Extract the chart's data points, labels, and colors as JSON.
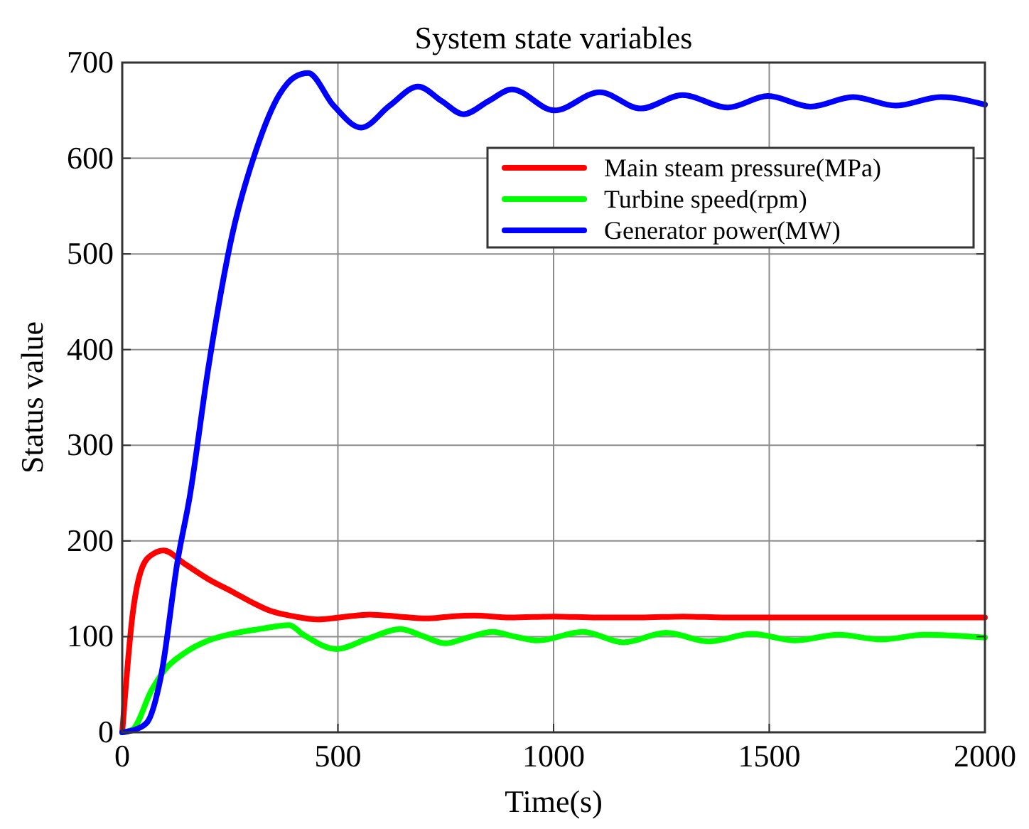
{
  "chart_data": {
    "type": "line",
    "title": "System state variables",
    "xlabel": "Time(s)",
    "ylabel": "Status value",
    "xlim": [
      0,
      2000
    ],
    "ylim": [
      0,
      700
    ],
    "xticks": [
      0,
      500,
      1000,
      1500,
      2000
    ],
    "yticks": [
      0,
      100,
      200,
      300,
      400,
      500,
      600,
      700
    ],
    "grid": true,
    "legend": "top right",
    "line_style": "solid",
    "marker": "none",
    "series": [
      {
        "name": "Main steam pressure(MPa)",
        "color": "#ff0000",
        "x": [
          0,
          24,
          46,
          70,
          96,
          145,
          200,
          255,
          300,
          343,
          400,
          453,
          520,
          574,
          640,
          705,
          760,
          815,
          900,
          1002,
          1100,
          1200,
          1300,
          1400,
          1500,
          1600,
          1700,
          1800,
          1900,
          2000
        ],
        "values": [
          0,
          123,
          172,
          186,
          190,
          176,
          160,
          147,
          136,
          127,
          121,
          118,
          121,
          123,
          121,
          119,
          121,
          122,
          120,
          121,
          120,
          120,
          121,
          120,
          120,
          120,
          120,
          120,
          120,
          120
        ]
      },
      {
        "name": "Turbine speed(rpm)",
        "color": "#00ff00",
        "x": [
          0,
          24,
          68,
          100,
          145,
          200,
          255,
          320,
          387,
          420,
          497,
          570,
          645,
          700,
          749,
          800,
          859,
          910,
          964,
          1068,
          1162,
          1261,
          1360,
          1460,
          1560,
          1660,
          1760,
          1860,
          2000
        ],
        "values": [
          0,
          3,
          44,
          66,
          83,
          96,
          103,
          108,
          112,
          102,
          87,
          98,
          108,
          100,
          93,
          99,
          105,
          100,
          96,
          105,
          94,
          104,
          95,
          103,
          96,
          102,
          97,
          102,
          99
        ]
      },
      {
        "name": "Generator power(MW)",
        "color": "#0000ff",
        "x": [
          0,
          24,
          57,
          90,
          129,
          156,
          200,
          255,
          310,
          365,
          400,
          431,
          490,
          554,
          620,
          686,
          740,
          791,
          850,
          903,
          1002,
          1107,
          1202,
          1299,
          1404,
          1497,
          1596,
          1694,
          1793,
          1898,
          2000
        ],
        "values": [
          0,
          2,
          10,
          59,
          181,
          245,
          382,
          520,
          608,
          667,
          685,
          689,
          655,
          632,
          655,
          675,
          660,
          646,
          660,
          672,
          650,
          669,
          652,
          666,
          653,
          665,
          654,
          664,
          655,
          664,
          656
        ]
      }
    ]
  }
}
